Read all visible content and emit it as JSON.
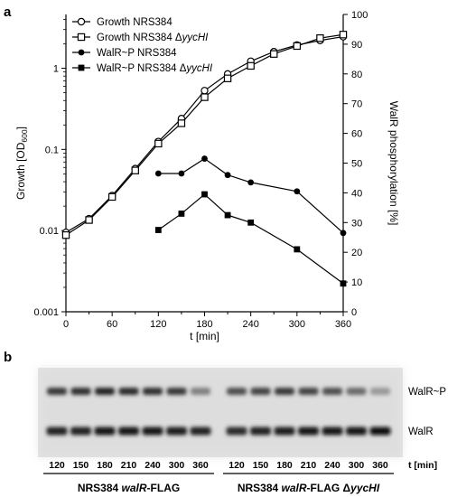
{
  "panel_labels": [
    "a",
    "b"
  ],
  "chart_data": {
    "type": "line",
    "xlabel": "t [min]",
    "ylabel_left": "Growth [OD600]",
    "ylabel_right": "WalR phosphorylation [%]",
    "x_ticks": [
      "0",
      "60",
      "120",
      "180",
      "240",
      "300",
      "360"
    ],
    "y_left_ticks": [
      "0.001",
      "0.01",
      "0.1",
      "1"
    ],
    "y_right_ticks": [
      "0",
      "10",
      "20",
      "30",
      "40",
      "50",
      "60",
      "70",
      "80",
      "90",
      "100"
    ],
    "xlim": [
      0,
      360
    ],
    "y_left_lim": [
      0.001,
      4.6
    ],
    "y_left_scale": "log",
    "y_right_lim": [
      0,
      100
    ],
    "legend_position": "top-left",
    "series": [
      {
        "name": "Growth NRS384",
        "axis": "left",
        "marker": "open-circle",
        "x": [
          0,
          30,
          60,
          90,
          120,
          150,
          180,
          210,
          240,
          270,
          300,
          330,
          360
        ],
        "y": [
          0.0095,
          0.014,
          0.027,
          0.058,
          0.125,
          0.24,
          0.53,
          0.85,
          1.22,
          1.6,
          1.93,
          2.2,
          2.45
        ]
      },
      {
        "name": "Growth NRS384 ΔyycHI",
        "axis": "left",
        "marker": "open-square",
        "x": [
          0,
          30,
          60,
          90,
          120,
          150,
          180,
          210,
          240,
          270,
          300,
          330,
          360
        ],
        "y": [
          0.0088,
          0.0135,
          0.026,
          0.055,
          0.118,
          0.21,
          0.44,
          0.75,
          1.07,
          1.5,
          1.88,
          2.35,
          2.6
        ]
      },
      {
        "name": "WalR~P NRS384",
        "axis": "right",
        "marker": "filled-circle",
        "x": [
          120,
          150,
          180,
          210,
          240,
          300,
          360
        ],
        "y": [
          46.5,
          46.5,
          51.5,
          46,
          43.5,
          40.5,
          26.5
        ]
      },
      {
        "name": "WalR~P NRS384 ΔyycHI",
        "axis": "right",
        "marker": "filled-square",
        "x": [
          120,
          150,
          180,
          210,
          240,
          300,
          360
        ],
        "y": [
          27.5,
          33,
          39.5,
          32.5,
          30,
          21,
          9.5
        ]
      }
    ]
  },
  "blot": {
    "band_labels": {
      "top": "WalR~P",
      "bottom": "WalR"
    },
    "unit_label": "t [min]",
    "groups": [
      {
        "name_prefix": "NRS384 ",
        "name_italic": "walR",
        "name_suffix": "-FLAG",
        "lanes": [
          "120",
          "150",
          "180",
          "210",
          "240",
          "300",
          "360"
        ],
        "top_intensity": [
          0.78,
          0.82,
          0.86,
          0.84,
          0.82,
          0.78,
          0.5
        ],
        "bottom_intensity": [
          0.86,
          0.86,
          0.9,
          0.9,
          0.92,
          0.88,
          0.86
        ]
      },
      {
        "name_prefix": "NRS384 ",
        "name_italic": "walR",
        "name_suffix": "-FLAG Δ",
        "name_italic2": "yycHI",
        "lanes": [
          "120",
          "150",
          "180",
          "210",
          "240",
          "300",
          "360"
        ],
        "top_intensity": [
          0.7,
          0.74,
          0.78,
          0.74,
          0.7,
          0.58,
          0.4
        ],
        "bottom_intensity": [
          0.84,
          0.86,
          0.88,
          0.9,
          0.92,
          0.92,
          0.96
        ]
      }
    ]
  }
}
